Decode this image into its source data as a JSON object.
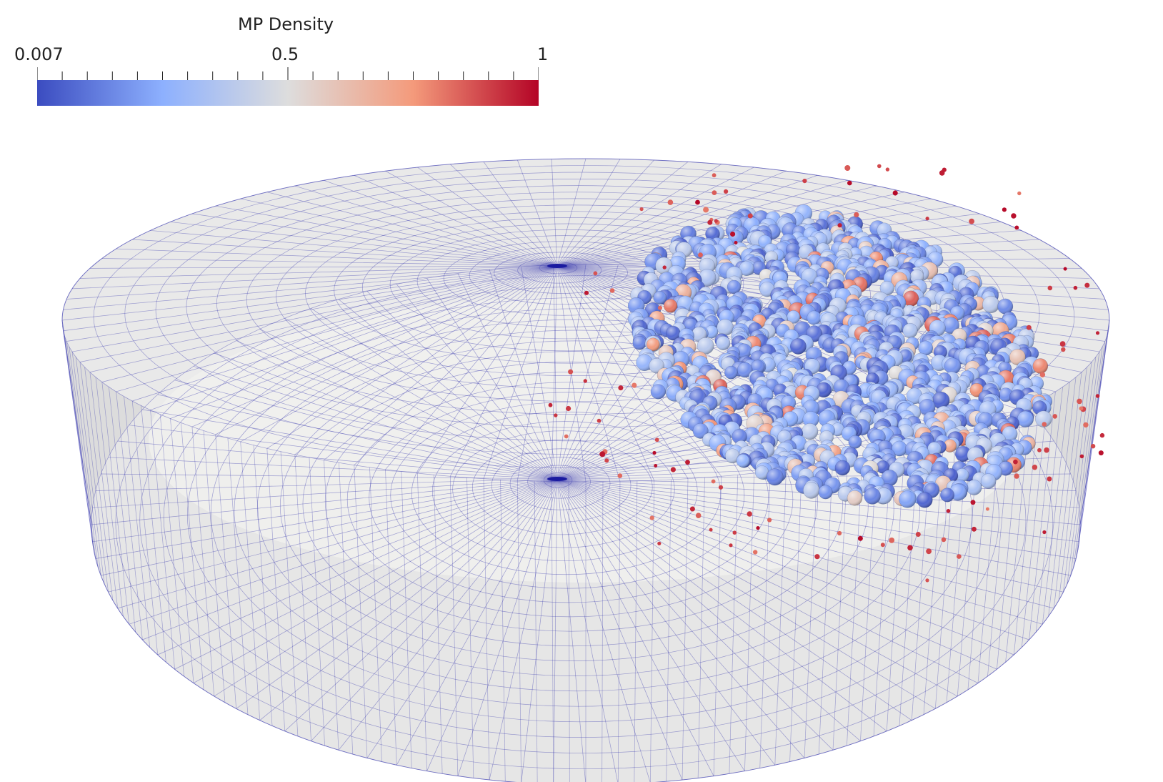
{
  "legend": {
    "title": "MP Density",
    "min_label": "0.007",
    "mid_label": "0.5",
    "max_label": "1",
    "colormap": [
      "#3b4cc0",
      "#8db0fe",
      "#dddddd",
      "#f49a7b",
      "#b40426"
    ]
  },
  "scene": {
    "mesh_color": "#3a3ab0",
    "surface_color": "#e6e6e6"
  }
}
